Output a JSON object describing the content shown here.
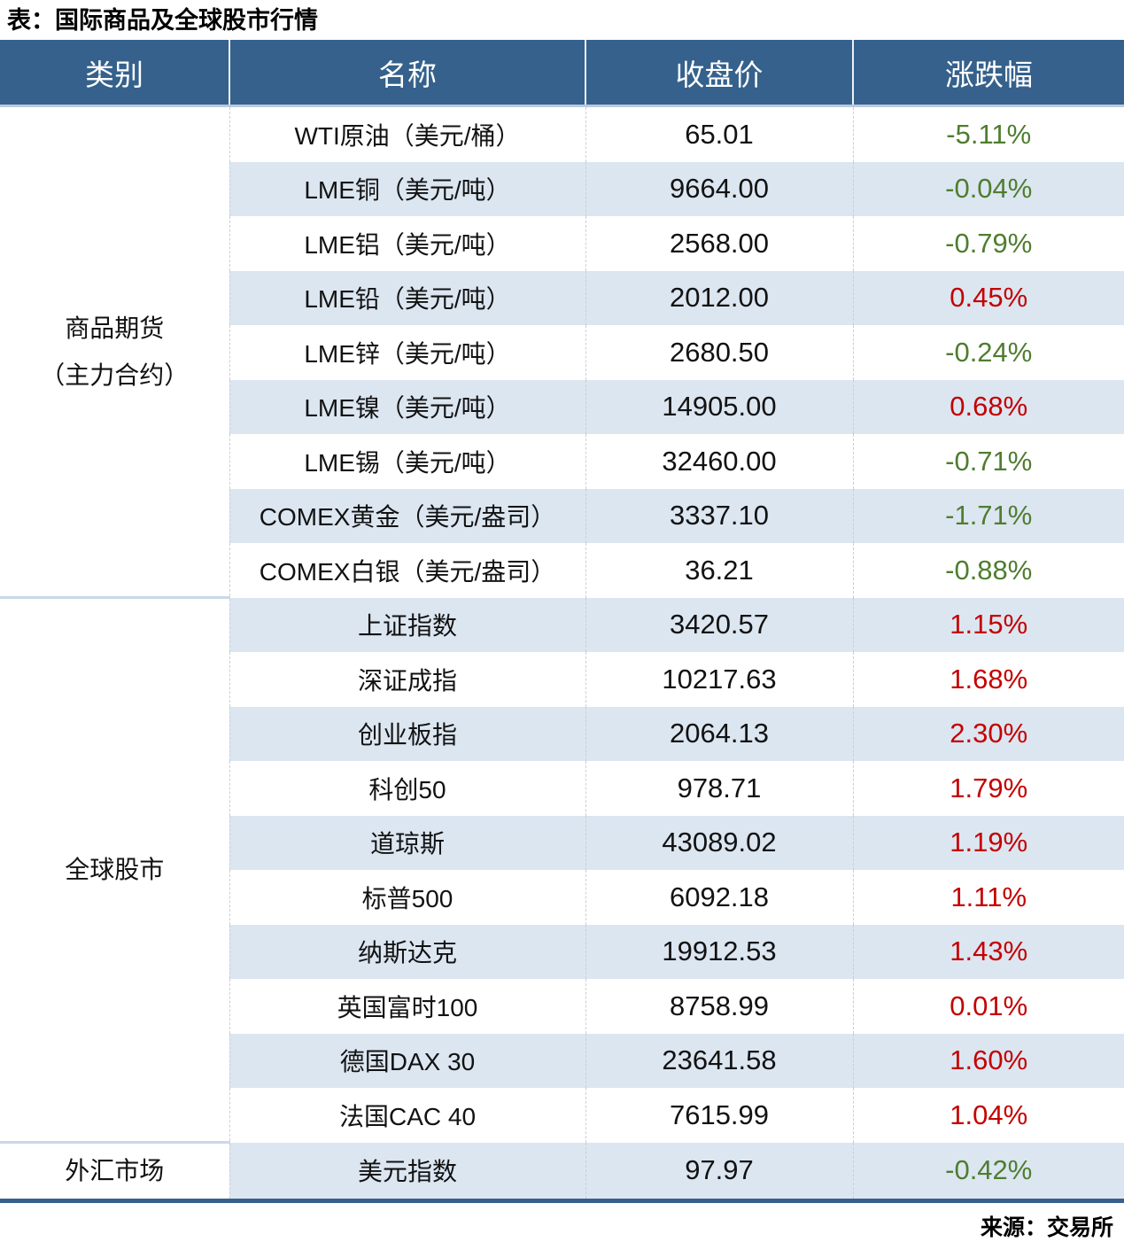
{
  "title": "表：国际商品及全球股市行情",
  "source_note": "来源：交易所",
  "colors": {
    "header_bg": "#35618C",
    "stripe_blue": "#DCE6F1",
    "up_red": "#C40000",
    "down_green": "#4F7D2F",
    "bottom_border": "#2F5C8C"
  },
  "chart_data": {
    "type": "table",
    "title": "表：国际商品及全球股市行情",
    "columns": [
      "类别",
      "名称",
      "收盘价",
      "涨跌幅"
    ],
    "groups": [
      {
        "category": "商品期货（主力合约）",
        "category_lines": [
          "商品期货",
          "（主力合约）"
        ],
        "rows": [
          {
            "name": "WTI原油（美元/桶）",
            "close": "65.01",
            "change": "-5.11%"
          },
          {
            "name": "LME铜（美元/吨）",
            "close": "9664.00",
            "change": "-0.04%"
          },
          {
            "name": "LME铝（美元/吨）",
            "close": "2568.00",
            "change": "-0.79%"
          },
          {
            "name": "LME铅（美元/吨）",
            "close": "2012.00",
            "change": "0.45%"
          },
          {
            "name": "LME锌（美元/吨）",
            "close": "2680.50",
            "change": "-0.24%"
          },
          {
            "name": "LME镍（美元/吨）",
            "close": "14905.00",
            "change": "0.68%"
          },
          {
            "name": "LME锡（美元/吨）",
            "close": "32460.00",
            "change": "-0.71%"
          },
          {
            "name": "COMEX黄金（美元/盎司）",
            "close": "3337.10",
            "change": "-1.71%"
          },
          {
            "name": "COMEX白银（美元/盎司）",
            "close": "36.21",
            "change": "-0.88%"
          }
        ]
      },
      {
        "category": "全球股市",
        "category_lines": [
          "全球股市"
        ],
        "rows": [
          {
            "name": "上证指数",
            "close": "3420.57",
            "change": "1.15%"
          },
          {
            "name": "深证成指",
            "close": "10217.63",
            "change": "1.68%"
          },
          {
            "name": "创业板指",
            "close": "2064.13",
            "change": "2.30%"
          },
          {
            "name": "科创50",
            "close": "978.71",
            "change": "1.79%"
          },
          {
            "name": "道琼斯",
            "close": "43089.02",
            "change": "1.19%"
          },
          {
            "name": "标普500",
            "close": "6092.18",
            "change": "1.11%"
          },
          {
            "name": "纳斯达克",
            "close": "19912.53",
            "change": "1.43%"
          },
          {
            "name": "英国富时100",
            "close": "8758.99",
            "change": "0.01%"
          },
          {
            "name": "德国DAX 30",
            "close": "23641.58",
            "change": "1.60%"
          },
          {
            "name": "法国CAC 40",
            "close": "7615.99",
            "change": "1.04%"
          }
        ]
      },
      {
        "category": "外汇市场",
        "category_lines": [
          "外汇市场"
        ],
        "rows": [
          {
            "name": "美元指数",
            "close": "97.97",
            "change": "-0.42%"
          }
        ]
      }
    ]
  }
}
